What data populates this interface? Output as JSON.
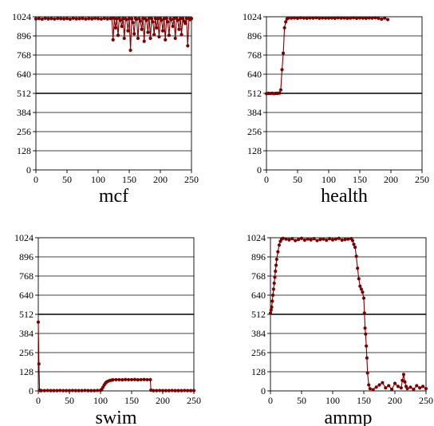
{
  "chart_data": [
    {
      "type": "line",
      "title": "mcf",
      "xlim": [
        0,
        250
      ],
      "ylim": [
        0,
        1024
      ],
      "xticks": [
        0,
        50,
        100,
        150,
        200,
        250
      ],
      "yticks": [
        0,
        128,
        256,
        384,
        512,
        640,
        768,
        896,
        1024
      ],
      "grid": "horizontal",
      "color": "#7b0000",
      "series": [
        {
          "x": [
            0,
            5,
            10,
            15,
            20,
            25,
            30,
            35,
            40,
            45,
            50,
            55,
            60,
            65,
            70,
            75,
            80,
            85,
            90,
            95,
            100,
            105,
            110,
            115,
            120,
            122,
            124,
            126,
            128,
            130,
            132,
            134,
            136,
            138,
            140,
            142,
            144,
            146,
            148,
            150,
            152,
            154,
            156,
            158,
            160,
            162,
            164,
            166,
            168,
            170,
            172,
            174,
            176,
            178,
            180,
            182,
            184,
            186,
            188,
            190,
            192,
            194,
            196,
            198,
            200,
            202,
            204,
            206,
            208,
            210,
            212,
            214,
            216,
            218,
            220,
            222,
            224,
            226,
            228,
            230,
            232,
            234,
            236,
            238,
            240,
            242,
            244,
            246,
            248,
            250
          ],
          "y": [
            1010,
            1012,
            1008,
            1014,
            1010,
            1012,
            1009,
            1013,
            1011,
            1010,
            1012,
            1008,
            1014,
            1010,
            1011,
            1013,
            1009,
            1012,
            1010,
            1014,
            1011,
            1009,
            1013,
            1010,
            1012,
            1015,
            870,
            1012,
            950,
            1010,
            900,
            1014,
            1000,
            960,
            1012,
            880,
            1010,
            1005,
            930,
            1012,
            800,
            1010,
            985,
            910,
            1013,
            1008,
            880,
            1011,
            995,
            940,
            1012,
            860,
            1010,
            1000,
            920,
            1014,
            880,
            1011,
            990,
            905,
            1012,
            950,
            1010,
            890,
            1013,
            1000,
            930,
            1011,
            870,
            1012,
            990,
            900,
            1010,
            1005,
            960,
            1012,
            880,
            1014,
            1000,
            940,
            1011,
            905,
            1012,
            995,
            980,
            1013,
            830,
            1010,
            1005,
            1012
          ]
        }
      ]
    },
    {
      "type": "line",
      "title": "health",
      "xlim": [
        0,
        250
      ],
      "ylim": [
        0,
        1024
      ],
      "xticks": [
        0,
        50,
        100,
        150,
        200,
        250
      ],
      "yticks": [
        0,
        128,
        256,
        384,
        512,
        640,
        768,
        896,
        1024
      ],
      "grid": "horizontal",
      "color": "#7b0000",
      "series": [
        {
          "x": [
            0,
            3,
            6,
            9,
            12,
            15,
            18,
            21,
            23,
            25,
            27,
            29,
            31,
            33,
            35,
            40,
            45,
            50,
            55,
            60,
            65,
            70,
            75,
            80,
            85,
            90,
            95,
            100,
            105,
            110,
            115,
            120,
            125,
            130,
            135,
            140,
            145,
            150,
            155,
            160,
            165,
            170,
            175,
            180,
            185,
            190,
            195
          ],
          "y": [
            510,
            512,
            511,
            513,
            510,
            512,
            512,
            514,
            535,
            670,
            780,
            950,
            990,
            1010,
            1015,
            1015,
            1016,
            1014,
            1017,
            1015,
            1014,
            1016,
            1015,
            1017,
            1014,
            1016,
            1015,
            1015,
            1016,
            1014,
            1017,
            1015,
            1016,
            1014,
            1015,
            1017,
            1014,
            1016,
            1015,
            1014,
            1016,
            1015,
            1017,
            1014,
            1008,
            1015,
            1005
          ]
        }
      ]
    },
    {
      "type": "line",
      "title": "swim",
      "xlim": [
        0,
        250
      ],
      "ylim": [
        0,
        1024
      ],
      "xticks": [
        0,
        50,
        100,
        150,
        200,
        250
      ],
      "yticks": [
        0,
        128,
        256,
        384,
        512,
        640,
        768,
        896,
        1024
      ],
      "grid": "horizontal",
      "color": "#7b0000",
      "series": [
        {
          "x": [
            0,
            1,
            2,
            3,
            5,
            10,
            15,
            20,
            25,
            30,
            35,
            40,
            45,
            50,
            55,
            60,
            65,
            70,
            75,
            80,
            85,
            90,
            95,
            100,
            102,
            104,
            106,
            108,
            110,
            112,
            115,
            118,
            120,
            125,
            130,
            135,
            140,
            145,
            150,
            155,
            160,
            165,
            170,
            175,
            180,
            181,
            185,
            190,
            195,
            200,
            205,
            210,
            215,
            220,
            225,
            230,
            235,
            240,
            245,
            250
          ],
          "y": [
            460,
            180,
            5,
            2,
            2,
            2,
            3,
            2,
            2,
            2,
            3,
            2,
            2,
            2,
            3,
            2,
            2,
            2,
            3,
            2,
            2,
            2,
            3,
            4,
            10,
            25,
            40,
            52,
            60,
            65,
            70,
            72,
            74,
            75,
            75,
            74,
            76,
            75,
            75,
            76,
            74,
            75,
            76,
            75,
            75,
            5,
            2,
            2,
            3,
            2,
            2,
            2,
            3,
            2,
            2,
            2,
            3,
            2,
            2,
            2
          ]
        }
      ]
    },
    {
      "type": "line",
      "title": "ammp",
      "xlim": [
        0,
        250
      ],
      "ylim": [
        0,
        1024
      ],
      "xticks": [
        0,
        50,
        100,
        150,
        200,
        250
      ],
      "yticks": [
        0,
        128,
        256,
        384,
        512,
        640,
        768,
        896,
        1024
      ],
      "grid": "horizontal",
      "color": "#7b0000",
      "series": [
        {
          "x": [
            0,
            1,
            2,
            3,
            4,
            5,
            6,
            7,
            8,
            9,
            10,
            12,
            14,
            16,
            18,
            20,
            25,
            30,
            35,
            40,
            45,
            50,
            55,
            60,
            65,
            70,
            75,
            80,
            85,
            90,
            95,
            100,
            105,
            110,
            115,
            120,
            125,
            130,
            132,
            134,
            136,
            138,
            140,
            142,
            144,
            146,
            148,
            150,
            151,
            152,
            153,
            154,
            155,
            156,
            158,
            160,
            165,
            170,
            175,
            180,
            185,
            190,
            195,
            200,
            205,
            210,
            212,
            214,
            216,
            218,
            220,
            225,
            230,
            235,
            240,
            245,
            250
          ],
          "y": [
            520,
            540,
            560,
            600,
            640,
            680,
            720,
            760,
            800,
            840,
            880,
            930,
            975,
            1000,
            1015,
            1020,
            1015,
            1010,
            1018,
            1005,
            1012,
            1020,
            1008,
            1015,
            1010,
            1018,
            1005,
            1012,
            1015,
            1008,
            1018,
            1010,
            1015,
            1020,
            1008,
            1012,
            1015,
            1018,
            1005,
            980,
            960,
            900,
            820,
            750,
            700,
            680,
            660,
            620,
            520,
            420,
            380,
            300,
            220,
            120,
            40,
            15,
            8,
            25,
            40,
            55,
            20,
            35,
            10,
            50,
            30,
            20,
            70,
            110,
            60,
            30,
            15,
            25,
            10,
            35,
            20,
            30,
            15
          ]
        }
      ]
    }
  ]
}
